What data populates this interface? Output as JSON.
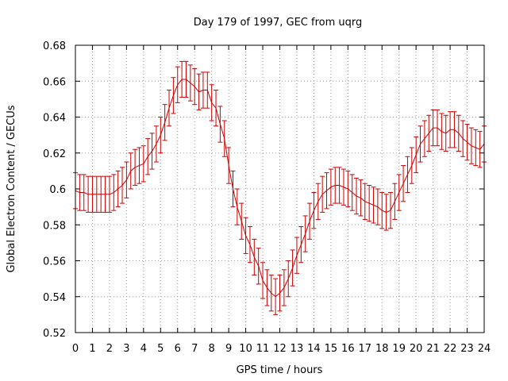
{
  "chart_data": {
    "type": "line",
    "title": "Day 179 of 1997, GEC from uqrg",
    "xlabel": "GPS time / hours",
    "ylabel": "Global Electron Content / GECUs",
    "xlim": [
      0,
      24
    ],
    "ylim": [
      0.52,
      0.68
    ],
    "grid": true,
    "series_color": "#cc0000",
    "x_ticks": [
      0,
      1,
      2,
      3,
      4,
      5,
      6,
      7,
      8,
      9,
      10,
      11,
      12,
      13,
      14,
      15,
      16,
      17,
      18,
      19,
      20,
      21,
      22,
      23,
      24
    ],
    "x_tick_labels": [
      "0",
      "1",
      "2",
      "3",
      "4",
      "5",
      "6",
      "7",
      "8",
      "9",
      "10",
      "11",
      "12",
      "13",
      "14",
      "15",
      "16",
      "17",
      "18",
      "19",
      "20",
      "21",
      "22",
      "23",
      "24"
    ],
    "y_ticks": [
      0.52,
      0.54,
      0.56,
      0.58,
      0.6,
      0.62,
      0.64,
      0.66,
      0.68
    ],
    "y_tick_labels": [
      "0.52",
      "0.54",
      "0.56",
      "0.58",
      "0.6",
      "0.62",
      "0.64",
      "0.66",
      "0.68"
    ],
    "error": 0.01,
    "series": [
      {
        "name": "GEC",
        "x": [
          0,
          0.25,
          0.5,
          0.75,
          1,
          1.25,
          1.5,
          1.75,
          2,
          2.25,
          2.5,
          2.75,
          3,
          3.25,
          3.5,
          3.75,
          4,
          4.25,
          4.5,
          4.75,
          5,
          5.25,
          5.5,
          5.75,
          6,
          6.25,
          6.5,
          6.75,
          7,
          7.25,
          7.5,
          7.75,
          8,
          8.25,
          8.5,
          8.75,
          9,
          9.25,
          9.5,
          9.75,
          10,
          10.25,
          10.5,
          10.75,
          11,
          11.25,
          11.5,
          11.75,
          12,
          12.25,
          12.5,
          12.75,
          13,
          13.25,
          13.5,
          13.75,
          14,
          14.25,
          14.5,
          14.75,
          15,
          15.25,
          15.5,
          15.75,
          16,
          16.25,
          16.5,
          16.75,
          17,
          17.25,
          17.5,
          17.75,
          18,
          18.25,
          18.5,
          18.75,
          19,
          19.25,
          19.5,
          19.75,
          20,
          20.25,
          20.5,
          20.75,
          21,
          21.25,
          21.5,
          21.75,
          22,
          22.25,
          22.5,
          22.75,
          23,
          23.25,
          23.5,
          23.75,
          24
        ],
        "values": [
          0.599,
          0.598,
          0.598,
          0.597,
          0.597,
          0.597,
          0.597,
          0.597,
          0.597,
          0.598,
          0.6,
          0.602,
          0.605,
          0.61,
          0.612,
          0.613,
          0.614,
          0.618,
          0.621,
          0.625,
          0.63,
          0.637,
          0.645,
          0.652,
          0.658,
          0.661,
          0.661,
          0.659,
          0.657,
          0.654,
          0.655,
          0.655,
          0.648,
          0.645,
          0.636,
          0.628,
          0.613,
          0.6,
          0.59,
          0.582,
          0.574,
          0.569,
          0.562,
          0.557,
          0.549,
          0.545,
          0.542,
          0.54,
          0.542,
          0.545,
          0.55,
          0.556,
          0.563,
          0.569,
          0.575,
          0.582,
          0.588,
          0.593,
          0.597,
          0.599,
          0.601,
          0.602,
          0.602,
          0.601,
          0.6,
          0.598,
          0.596,
          0.595,
          0.593,
          0.592,
          0.591,
          0.59,
          0.588,
          0.587,
          0.588,
          0.593,
          0.598,
          0.603,
          0.608,
          0.613,
          0.619,
          0.625,
          0.628,
          0.631,
          0.634,
          0.634,
          0.632,
          0.631,
          0.633,
          0.633,
          0.631,
          0.628,
          0.626,
          0.624,
          0.623,
          0.622,
          0.625
        ]
      }
    ]
  }
}
